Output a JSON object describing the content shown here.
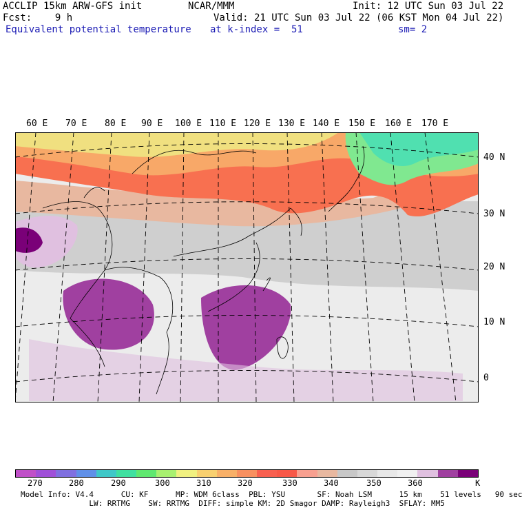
{
  "header": {
    "line1_left": "ACCLIP 15km ARW-GFS init",
    "line1_mid": "NCAR/MMM",
    "line1_right": "Init: 12 UTC Sun 03 Jul 22",
    "line2_left": "Fcst:    9 h",
    "line2_right": "Valid: 21 UTC Sun 03 Jul 22 (06 KST Mon 04 Jul 22)",
    "line3_field": "Equivalent potential temperature",
    "line3_level": "at k-index =  51",
    "line3_sm": "sm= 2"
  },
  "map": {
    "lon_labels": [
      "60 E",
      "70 E",
      "80 E",
      "90 E",
      "100 E",
      "110 E",
      "120 E",
      "130 E",
      "140 E",
      "150 E",
      "160 E",
      "170 E"
    ],
    "lat_labels": [
      "40 N",
      "30 N",
      "20 N",
      "10 N",
      "0"
    ],
    "lat_values": [
      40,
      30,
      20,
      10,
      0
    ],
    "lon_values": [
      60,
      70,
      80,
      90,
      100,
      110,
      120,
      130,
      140,
      150,
      160,
      170
    ]
  },
  "colorbar": {
    "colors": [
      "#c050c8",
      "#a050d8",
      "#8070e0",
      "#6090e8",
      "#40c8c8",
      "#40e0a0",
      "#60e870",
      "#a8f070",
      "#f0f080",
      "#f8d070",
      "#f8b068",
      "#f89060",
      "#f86050",
      "#f85848",
      "#f8a090",
      "#e8b8a0",
      "#c8c8c8",
      "#d8d8d8",
      "#e8e8e8",
      "#f0f0f0",
      "#e0c0e0",
      "#a040a0",
      "#7a0078"
    ],
    "ticks": [
      "270",
      "280",
      "290",
      "300",
      "310",
      "320",
      "330",
      "340",
      "350",
      "360",
      "K"
    ]
  },
  "footer": {
    "line1": "Model Info: V4.4      CU: KF      MP: WDM 6class  PBL: YSU       SF: Noah LSM      15 km    51 levels   90 sec",
    "line2": "               LW: RRTMG    SW: RRTMG  DIFF: simple KM: 2D Smagor DAMP: Rayleigh3  SFLAY: MM5"
  }
}
